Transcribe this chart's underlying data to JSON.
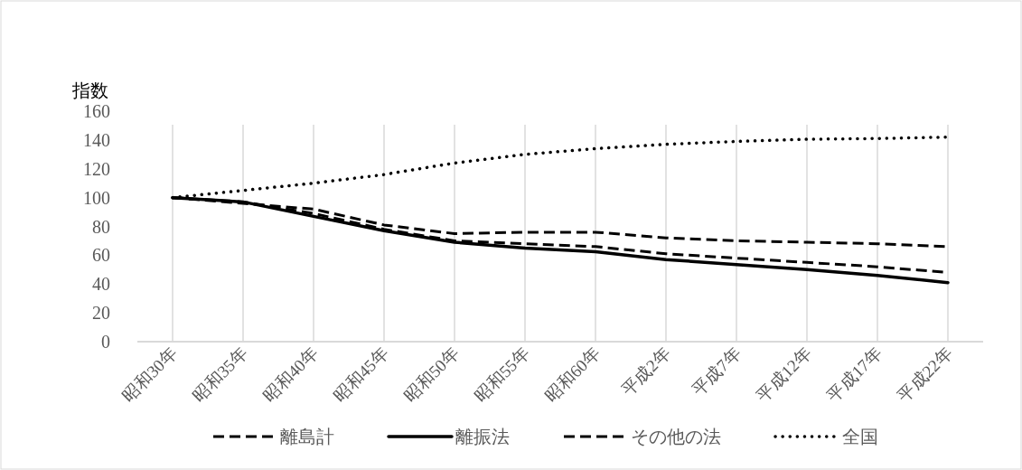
{
  "chart_data": {
    "type": "line",
    "ylabel": "指数",
    "categories": [
      "昭和30年",
      "昭和35年",
      "昭和40年",
      "昭和45年",
      "昭和50年",
      "昭和55年",
      "昭和60年",
      "平成2年",
      "平成7年",
      "平成12年",
      "平成17年",
      "平成22年"
    ],
    "series": [
      {
        "name": "離島計",
        "color": "#000000",
        "line_style": "dashed",
        "values": [
          100,
          97,
          89,
          78,
          70,
          68,
          66,
          61,
          58,
          55,
          52,
          48
        ]
      },
      {
        "name": "離振法",
        "color": "#000000",
        "line_style": "solid",
        "values": [
          100,
          97,
          87,
          77,
          69,
          65,
          62.5,
          57,
          53.5,
          50,
          46,
          41
        ]
      },
      {
        "name": "その他の法",
        "color": "#000000",
        "line_style": "dashed",
        "values": [
          100,
          96,
          92,
          81,
          75,
          76,
          76,
          72,
          70,
          69,
          68,
          66
        ]
      },
      {
        "name": "全国",
        "color": "#000000",
        "line_style": "dotted",
        "values": [
          100,
          105,
          110,
          116,
          124,
          130,
          134,
          137,
          139,
          140.5,
          141,
          142
        ]
      }
    ],
    "ylim": [
      0,
      160
    ],
    "yticks": [
      0,
      20,
      40,
      60,
      80,
      100,
      120,
      140,
      160
    ],
    "grid": "x",
    "legend": "bottom",
    "marker": "none"
  }
}
